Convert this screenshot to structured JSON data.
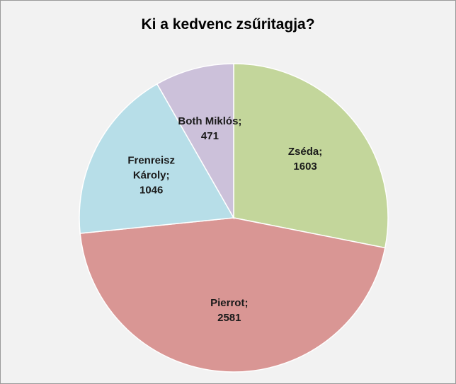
{
  "chart_data": {
    "type": "pie",
    "title": "Ki a kedvenc zsűritagja?",
    "categories": [
      "Zséda",
      "Pierrot",
      "Frenreisz Károly",
      "Both Miklós"
    ],
    "values": [
      1603,
      2581,
      1046,
      471
    ],
    "colors": [
      "#c3d69b",
      "#d99694",
      "#b7dee8",
      "#ccc1da"
    ],
    "label_separator": ";"
  }
}
